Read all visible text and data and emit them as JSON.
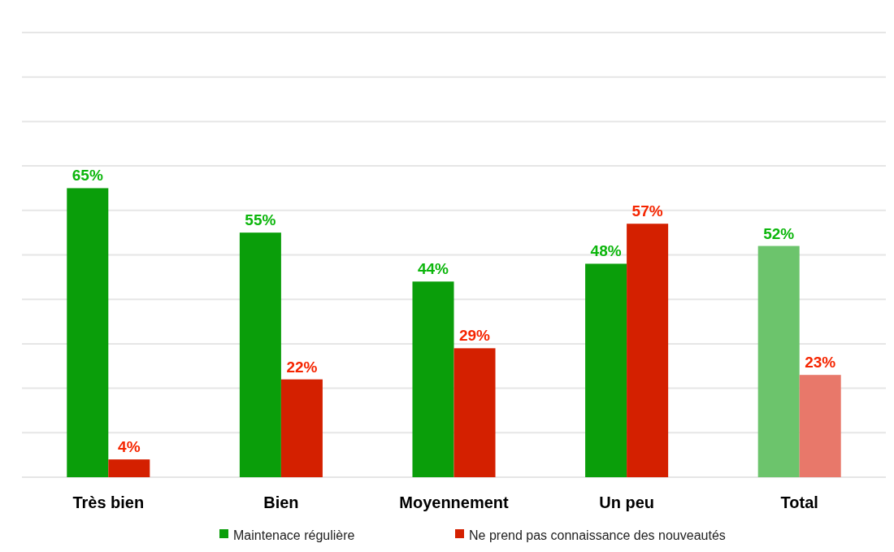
{
  "chart_data": {
    "type": "bar",
    "categories": [
      "Très bien",
      "Bien",
      "Moyennement",
      "Un peu",
      "Total"
    ],
    "series": [
      {
        "name": "Maintenace régulière",
        "color": "#0a9e0a",
        "colors": [
          "#0a9e0a",
          "#0a9e0a",
          "#0a9e0a",
          "#0a9e0a",
          "#6cc46c"
        ],
        "values": [
          65,
          55,
          44,
          48,
          52
        ],
        "value_labels": [
          "65%",
          "55%",
          "44%",
          "48%",
          "52%"
        ]
      },
      {
        "name": "Ne prend pas connaissance des nouveautés",
        "color": "#d42000",
        "colors": [
          "#d42000",
          "#d42000",
          "#d42000",
          "#d42000",
          "#e8786a"
        ],
        "values": [
          4,
          22,
          29,
          57,
          23
        ],
        "value_labels": [
          "4%",
          "22%",
          "29%",
          "57%",
          "23%"
        ]
      }
    ],
    "ylim": [
      0,
      100
    ],
    "yticks": [
      {
        "value": 0,
        "label": null
      },
      {
        "value": 10,
        "label": null
      },
      {
        "value": 20,
        "label": null
      },
      {
        "value": 30,
        "label": null
      },
      {
        "value": 40,
        "label": null
      },
      {
        "value": 50,
        "label": null
      },
      {
        "value": 60,
        "label": null
      },
      {
        "value": 70,
        "label": null
      },
      {
        "value": 80,
        "label": null
      },
      {
        "value": 90,
        "label": null
      },
      {
        "value": 100,
        "label": null
      }
    ],
    "tick_labels": "x",
    "grid": "y",
    "legend": "bottom"
  }
}
